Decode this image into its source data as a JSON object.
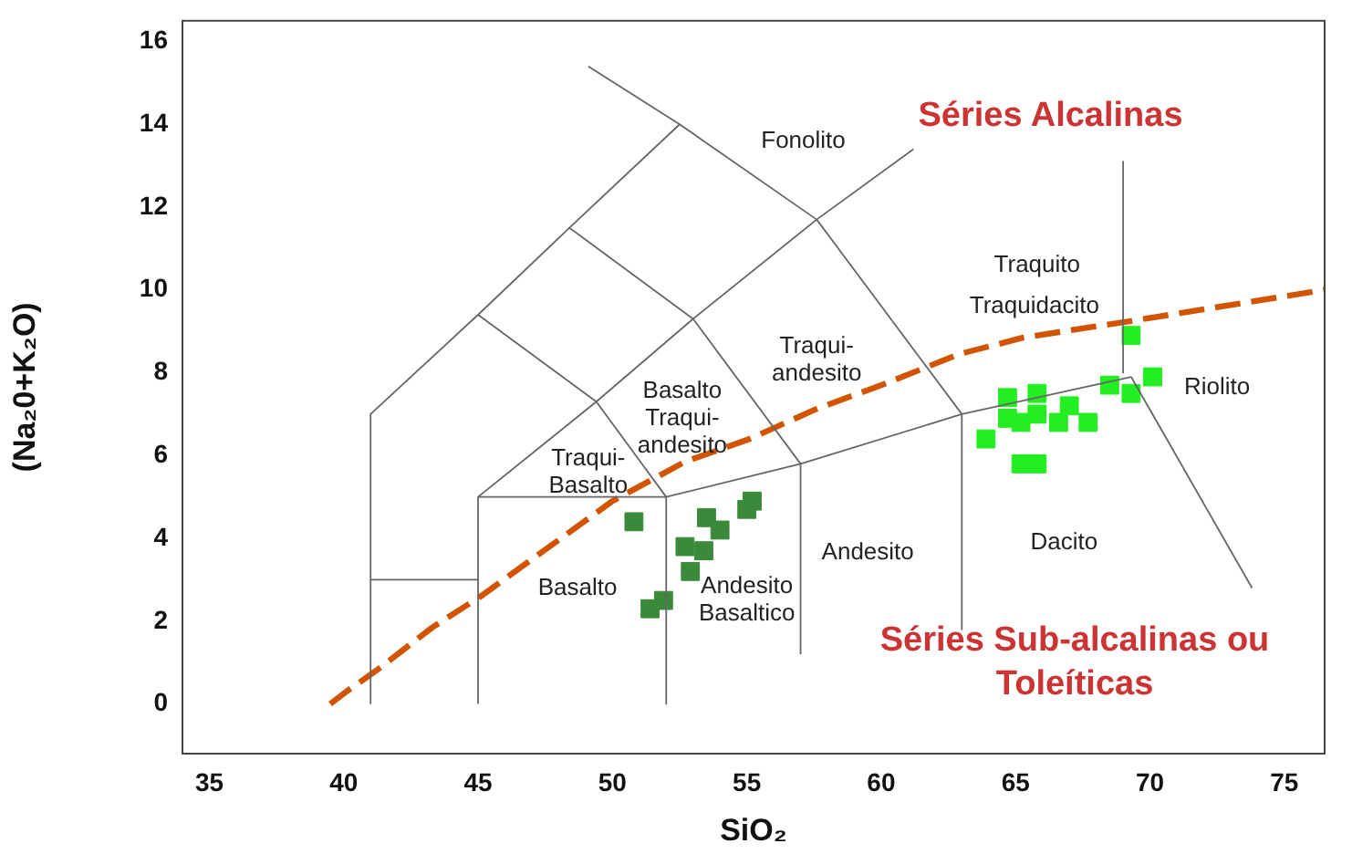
{
  "chart_data": {
    "type": "scatter",
    "xlabel": "SiO₂",
    "ylabel": "(Na₂0+K₂O)",
    "xlim": [
      34,
      76.5
    ],
    "ylim": [
      -1.2,
      16.5
    ],
    "xticks": [
      35,
      40,
      45,
      50,
      55,
      60,
      65,
      70,
      75
    ],
    "yticks": [
      0,
      2,
      4,
      6,
      8,
      10,
      12,
      14,
      16
    ],
    "marker": "square",
    "series": [
      {
        "type": "line",
        "color": "#666666",
        "marker": "none",
        "x": [
          41,
          41,
          45,
          48.4,
          52.5,
          57.6,
          63,
          63,
          null,
          49.1,
          52.5,
          null,
          57.6,
          61.2,
          null,
          41,
          45,
          null,
          45,
          45,
          52,
          52,
          null,
          52,
          57,
          63,
          69.3,
          null,
          57,
          57,
          null,
          45,
          49.4,
          53,
          57.6,
          null,
          45,
          49.4,
          52,
          null,
          48.4,
          53,
          57,
          null,
          69,
          69,
          null,
          69.3,
          73.8
        ],
        "values": [
          0,
          7,
          9.4,
          11.5,
          14,
          11.7,
          7,
          1.8,
          null,
          15.4,
          14,
          null,
          11.7,
          13.4,
          null,
          3,
          3,
          null,
          0,
          5,
          5,
          0,
          null,
          5,
          5.8,
          7,
          7.9,
          null,
          1.2,
          5.8,
          null,
          5,
          7.3,
          9.3,
          11.7,
          null,
          9.4,
          7.3,
          5,
          null,
          11.5,
          9.3,
          5.8,
          null,
          13.1,
          8,
          null,
          7.9,
          2.8
        ]
      },
      {
        "type": "line",
        "color": "#d35400",
        "marker": "none",
        "line_style": "dashed",
        "x": [
          39.5,
          40.1,
          41.2,
          43.3,
          45.1,
          50,
          52.7,
          55.1,
          57.5,
          60.2,
          62.9,
          65.3,
          69.3,
          76.5
        ],
        "values": [
          0,
          0.3,
          0.8,
          1.85,
          2.6,
          4.9,
          5.85,
          6.4,
          7.1,
          7.75,
          8.45,
          8.85,
          9.25,
          10
        ]
      },
      {
        "type": "scatter",
        "color": "#3a8a3a",
        "x": [
          50.8,
          55.2,
          55,
          53.5,
          54,
          52.7,
          53.4,
          52.9,
          51.9,
          51.4
        ],
        "values": [
          4.4,
          4.9,
          4.7,
          4.5,
          4.2,
          3.8,
          3.7,
          3.2,
          2.5,
          2.3
        ]
      },
      {
        "type": "scatter",
        "color": "#22ee22",
        "x": [
          69.3,
          64.7,
          65.8,
          64.7,
          65.8,
          67,
          67.7,
          63.9,
          65.2,
          65.8,
          68.5,
          69.3,
          70.1,
          66.6,
          65.2
        ],
        "values": [
          8.9,
          7.4,
          7.5,
          6.9,
          7,
          7.2,
          6.8,
          6.4,
          5.8,
          5.8,
          7.7,
          7.5,
          7.9,
          6.8,
          6.8
        ]
      }
    ],
    "annotations": [
      "Fonolito",
      "Traquito",
      "Traquidacito",
      "Traqui-\nandesito",
      "Basalto\nTraqui-\nandesito",
      "Traqui-\nBasalto",
      "Riolito",
      "Basalto",
      "Andesito\nBasaltico",
      "Andesito",
      "Dacito",
      "Séries Alcalinas",
      "Séries Sub-alcalinas ou\nToleíticas"
    ]
  }
}
